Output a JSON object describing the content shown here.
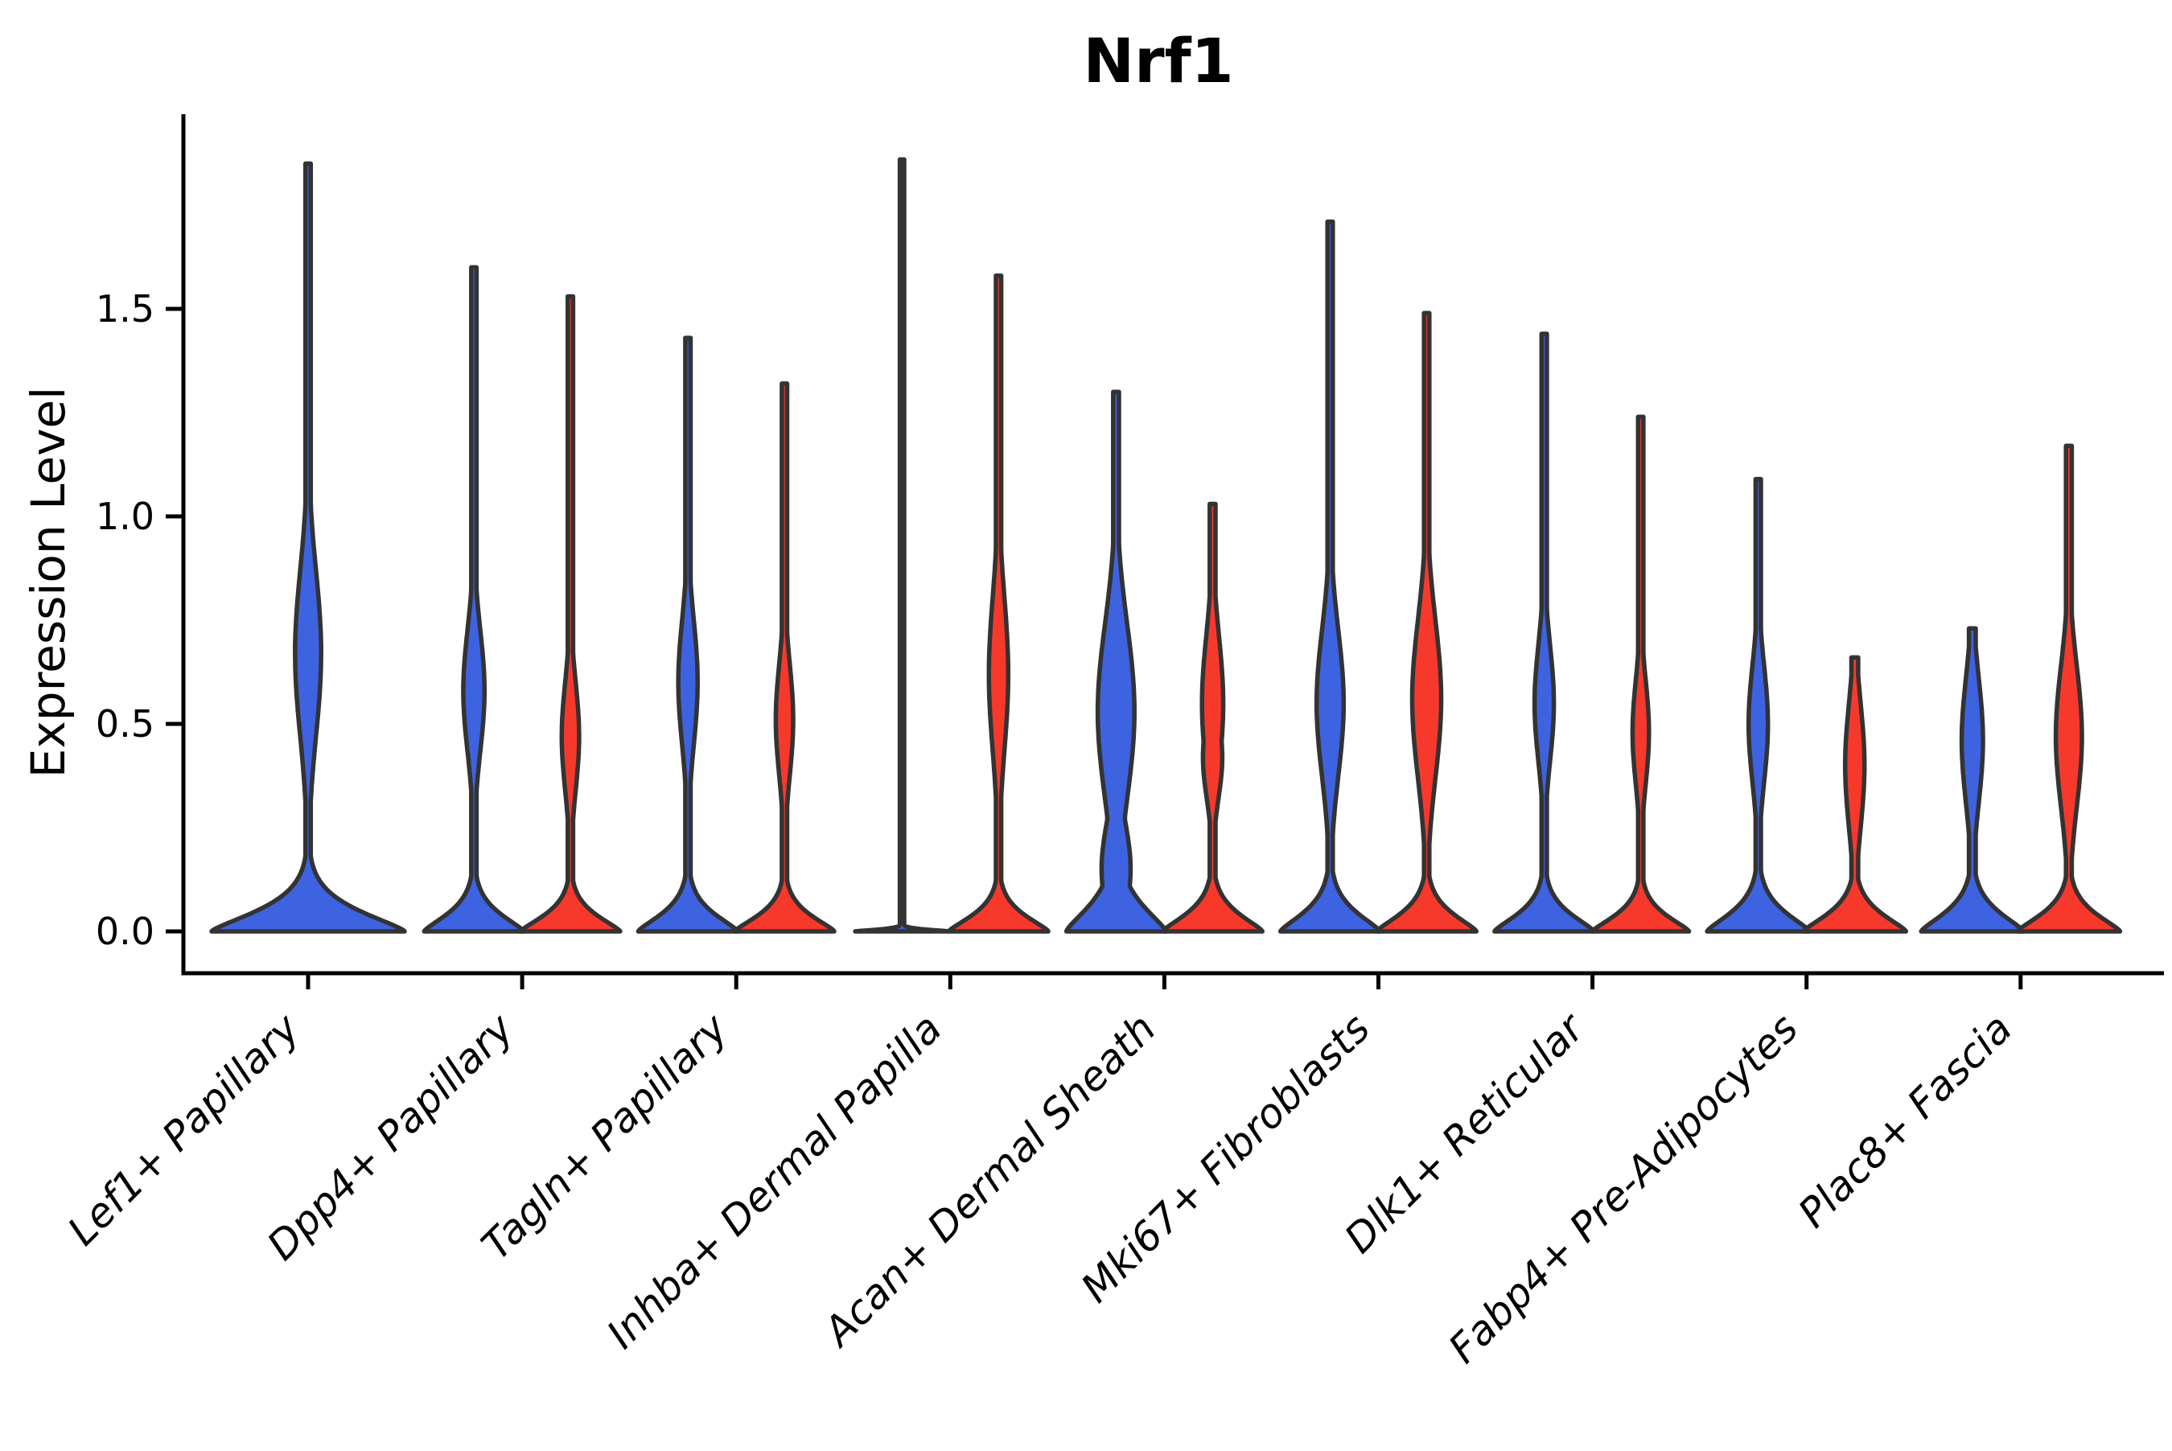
{
  "chart_data": {
    "type": "violin",
    "title": "Nrf1",
    "ylabel": "Expression Level",
    "yticks": [
      {
        "label": "0.0",
        "value": 0.0
      },
      {
        "label": "0.5",
        "value": 0.5
      },
      {
        "label": "1.0",
        "value": 1.0
      },
      {
        "label": "1.5",
        "value": 1.5
      }
    ],
    "ylim": [
      0,
      1.95
    ],
    "grid": false,
    "legend": "none",
    "categories": [
      "Lef1+ Papillary",
      "Dpp4+ Papillary",
      "Tagln+ Papillary",
      "Inhba+ Dermal Papilla",
      "Acan+ Dermal Sheath",
      "Mki67+ Fibroblasts",
      "Dlk1+ Reticular",
      "Fabp4+ Pre-Adipocytes",
      "Plac8+ Fascia"
    ],
    "palette": {
      "blue": "#3E63E0",
      "red": "#F7392C",
      "outline": "#333333",
      "axis": "#000000"
    },
    "violins": [
      {
        "category": "Lef1+ Papillary",
        "parts": [
          {
            "color": "blue",
            "position": "center",
            "max": 1.85,
            "base_halfwidth": 2.0,
            "base_decay": 0.07,
            "tail_hw": 0.055,
            "peaks": [
              {
                "v": 0.67,
                "hw": 0.27,
                "sigma": 0.2
              }
            ]
          }
        ]
      },
      {
        "category": "Dpp4+ Papillary",
        "parts": [
          {
            "color": "blue",
            "position": "left",
            "max": 1.6,
            "base_halfwidth": 1.03,
            "base_decay": 0.06,
            "tail_hw": 0.055,
            "peaks": [
              {
                "v": 0.58,
                "hw": 0.22,
                "sigma": 0.145
              }
            ]
          },
          {
            "color": "red",
            "position": "right",
            "max": 1.53,
            "base_halfwidth": 1.03,
            "base_decay": 0.055,
            "tail_hw": 0.055,
            "peaks": [
              {
                "v": 0.47,
                "hw": 0.18,
                "sigma": 0.13
              }
            ]
          }
        ]
      },
      {
        "category": "Tagln+ Papillary",
        "parts": [
          {
            "color": "blue",
            "position": "left",
            "max": 1.43,
            "base_halfwidth": 1.03,
            "base_decay": 0.06,
            "tail_hw": 0.055,
            "peaks": [
              {
                "v": 0.6,
                "hw": 0.2,
                "sigma": 0.15
              }
            ]
          },
          {
            "color": "red",
            "position": "right",
            "max": 1.32,
            "base_halfwidth": 1.03,
            "base_decay": 0.055,
            "tail_hw": 0.055,
            "peaks": [
              {
                "v": 0.51,
                "hw": 0.18,
                "sigma": 0.135
              }
            ]
          }
        ]
      },
      {
        "category": "Inhba+ Dermal Papilla",
        "parts": [
          {
            "color": "blue",
            "position": "left",
            "max": 1.86,
            "base_halfwidth": 0.97,
            "base_decay": 0.006,
            "tail_hw": 0.045,
            "peaks": []
          },
          {
            "color": "red",
            "position": "right",
            "max": 1.58,
            "base_halfwidth": 1.03,
            "base_decay": 0.055,
            "tail_hw": 0.055,
            "peaks": [
              {
                "v": 0.62,
                "hw": 0.2,
                "sigma": 0.185
              }
            ]
          }
        ]
      },
      {
        "category": "Acan+ Dermal Sheath",
        "parts": [
          {
            "color": "blue",
            "position": "left",
            "max": 1.3,
            "base_halfwidth": 1.03,
            "base_decay": 0.09,
            "tail_hw": 0.06,
            "peaks": [
              {
                "v": 0.53,
                "hw": 0.38,
                "sigma": 0.21
              },
              {
                "v": 0.15,
                "hw": 0.3,
                "sigma": 0.12
              }
            ]
          },
          {
            "color": "red",
            "position": "right",
            "max": 1.03,
            "base_halfwidth": 1.03,
            "base_decay": 0.06,
            "tail_hw": 0.06,
            "peaks": [
              {
                "v": 0.55,
                "hw": 0.22,
                "sigma": 0.16
              },
              {
                "v": 0.42,
                "hw": 0.2,
                "sigma": 0.1
              }
            ]
          }
        ]
      },
      {
        "category": "Mki67+ Fibroblasts",
        "parts": [
          {
            "color": "blue",
            "position": "left",
            "max": 1.71,
            "base_halfwidth": 1.03,
            "base_decay": 0.065,
            "tail_hw": 0.055,
            "peaks": [
              {
                "v": 0.55,
                "hw": 0.28,
                "sigma": 0.175
              }
            ]
          },
          {
            "color": "red",
            "position": "right",
            "max": 1.49,
            "base_halfwidth": 1.03,
            "base_decay": 0.06,
            "tail_hw": 0.055,
            "peaks": [
              {
                "v": 0.56,
                "hw": 0.3,
                "sigma": 0.19
              }
            ]
          }
        ]
      },
      {
        "category": "Dlk1+ Reticular",
        "parts": [
          {
            "color": "blue",
            "position": "left",
            "max": 1.44,
            "base_halfwidth": 1.03,
            "base_decay": 0.06,
            "tail_hw": 0.055,
            "peaks": [
              {
                "v": 0.55,
                "hw": 0.2,
                "sigma": 0.14
              }
            ]
          },
          {
            "color": "red",
            "position": "right",
            "max": 1.24,
            "base_halfwidth": 1.0,
            "base_decay": 0.055,
            "tail_hw": 0.055,
            "peaks": [
              {
                "v": 0.48,
                "hw": 0.17,
                "sigma": 0.125
              }
            ]
          }
        ]
      },
      {
        "category": "Fabp4+ Pre-Adipocytes",
        "parts": [
          {
            "color": "blue",
            "position": "left",
            "max": 1.09,
            "base_halfwidth": 1.06,
            "base_decay": 0.065,
            "tail_hw": 0.055,
            "peaks": [
              {
                "v": 0.5,
                "hw": 0.2,
                "sigma": 0.14
              }
            ]
          },
          {
            "color": "red",
            "position": "right",
            "max": 0.66,
            "base_halfwidth": 1.06,
            "base_decay": 0.06,
            "tail_hw": 0.07,
            "peaks": [
              {
                "v": 0.4,
                "hw": 0.2,
                "sigma": 0.15
              }
            ]
          }
        ]
      },
      {
        "category": "Plac8+ Fascia",
        "parts": [
          {
            "color": "blue",
            "position": "left",
            "max": 0.73,
            "base_halfwidth": 1.06,
            "base_decay": 0.065,
            "tail_hw": 0.07,
            "peaks": [
              {
                "v": 0.46,
                "hw": 0.22,
                "sigma": 0.15
              }
            ]
          },
          {
            "color": "red",
            "position": "right",
            "max": 1.17,
            "base_halfwidth": 1.06,
            "base_decay": 0.06,
            "tail_hw": 0.06,
            "peaks": [
              {
                "v": 0.47,
                "hw": 0.27,
                "sigma": 0.17
              }
            ]
          }
        ]
      }
    ]
  }
}
